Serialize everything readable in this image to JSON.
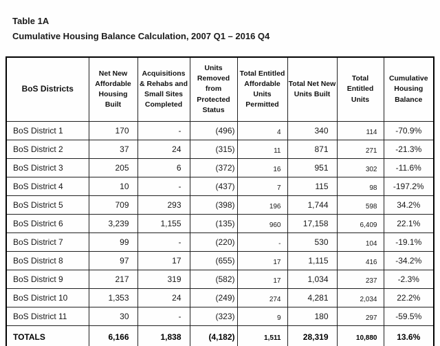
{
  "page": {
    "title": "Table 1A",
    "subtitle": "Cumulative Housing Balance Calculation, 2007 Q1 – 2016 Q4"
  },
  "colors": {
    "text": "#1a1a1a",
    "border": "#000000",
    "background": "#fefefe"
  },
  "table": {
    "columns": [
      {
        "key": "bos-districts",
        "label": "BoS Districts"
      },
      {
        "key": "net-new-affordable-housing-built",
        "label": "Net New Affordable Housing Built"
      },
      {
        "key": "acquisitions-rehabs-small-sites-completed",
        "label": "Acquisitions & Rehabs and Small Sites Completed"
      },
      {
        "key": "units-removed-from-protected-status",
        "label": "Units Removed from Protected Status"
      },
      {
        "key": "total-entitled-affordable-units-permitted",
        "label": "Total Entitled Affordable Units Permitted"
      },
      {
        "key": "total-net-new-units-built",
        "label": "Total Net New Units Built"
      },
      {
        "key": "total-entitled-units",
        "label": "Total Entitled Units"
      },
      {
        "key": "cumulative-housing-balance",
        "label": "Cumulative Housing Balance"
      }
    ],
    "rows": [
      {
        "district": "BoS District 1",
        "values": [
          "170",
          "-",
          "(496)",
          "4",
          "340",
          "114",
          "-70.9%"
        ]
      },
      {
        "district": "BoS District 2",
        "values": [
          "37",
          "24",
          "(315)",
          "11",
          "871",
          "271",
          "-21.3%"
        ]
      },
      {
        "district": "BoS District 3",
        "values": [
          "205",
          "6",
          "(372)",
          "16",
          "951",
          "302",
          "-11.6%"
        ]
      },
      {
        "district": "BoS District 4",
        "values": [
          "10",
          "-",
          "(437)",
          "7",
          "115",
          "98",
          "-197.2%"
        ]
      },
      {
        "district": "BoS District 5",
        "values": [
          "709",
          "293",
          "(398)",
          "196",
          "1,744",
          "598",
          "34.2%"
        ]
      },
      {
        "district": "BoS District 6",
        "values": [
          "3,239",
          "1,155",
          "(135)",
          "960",
          "17,158",
          "6,409",
          "22.1%"
        ]
      },
      {
        "district": "BoS District 7",
        "values": [
          "99",
          "-",
          "(220)",
          "-",
          "530",
          "104",
          "-19.1%"
        ]
      },
      {
        "district": "BoS District 8",
        "values": [
          "97",
          "17",
          "(655)",
          "17",
          "1,115",
          "416",
          "-34.2%"
        ]
      },
      {
        "district": "BoS District 9",
        "values": [
          "217",
          "319",
          "(582)",
          "17",
          "1,034",
          "237",
          "-2.3%"
        ]
      },
      {
        "district": "BoS District 10",
        "values": [
          "1,353",
          "24",
          "(249)",
          "274",
          "4,281",
          "2,034",
          "22.2%"
        ]
      },
      {
        "district": "BoS District 11",
        "values": [
          "30",
          "-",
          "(323)",
          "9",
          "180",
          "297",
          "-59.5%"
        ]
      }
    ],
    "totals": {
      "label": "TOTALS",
      "values": [
        "6,166",
        "1,838",
        "(4,182)",
        "1,511",
        "28,319",
        "10,880",
        "13.6%"
      ]
    }
  }
}
